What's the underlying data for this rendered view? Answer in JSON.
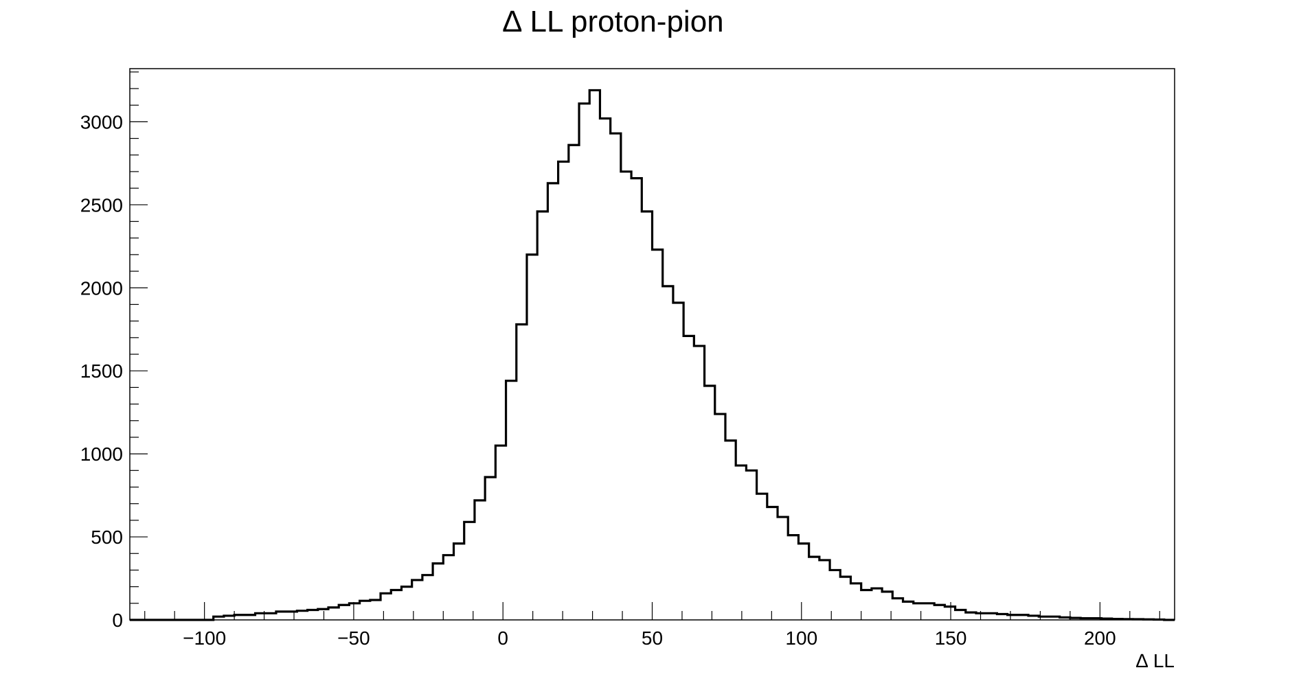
{
  "chart_data": {
    "type": "bar",
    "title": "∆ LL proton-pion",
    "xlabel": "∆ LL",
    "ylabel": "",
    "xlim": [
      -125,
      225
    ],
    "ylim": [
      0,
      3320
    ],
    "grid": false,
    "x_ticks": [
      -100,
      -50,
      0,
      50,
      100,
      150,
      200
    ],
    "x_tick_labels": [
      "−100",
      "−50",
      "0",
      "50",
      "100",
      "150",
      "200"
    ],
    "y_ticks": [
      0,
      500,
      1000,
      1500,
      2000,
      2500,
      3000
    ],
    "y_tick_labels": [
      "0",
      "500",
      "1000",
      "1500",
      "2000",
      "2500",
      "3000"
    ],
    "bin_width": 3.5,
    "bin_start": -125,
    "values": [
      0,
      0,
      0,
      0,
      0,
      0,
      0,
      0,
      20,
      25,
      30,
      30,
      40,
      40,
      50,
      50,
      55,
      60,
      65,
      75,
      90,
      100,
      115,
      120,
      160,
      180,
      200,
      240,
      270,
      340,
      390,
      460,
      590,
      720,
      860,
      1050,
      1440,
      1780,
      2200,
      2460,
      2630,
      2760,
      2860,
      3110,
      3190,
      3020,
      2930,
      2700,
      2660,
      2460,
      2230,
      2010,
      1910,
      1710,
      1650,
      1410,
      1240,
      1080,
      930,
      900,
      760,
      680,
      620,
      510,
      460,
      380,
      360,
      300,
      260,
      220,
      180,
      190,
      170,
      130,
      110,
      100,
      100,
      90,
      80,
      60,
      45,
      40,
      40,
      35,
      30,
      30,
      25,
      20,
      20,
      15,
      12,
      10,
      10,
      8,
      6,
      5,
      4,
      3,
      2,
      0
    ]
  }
}
